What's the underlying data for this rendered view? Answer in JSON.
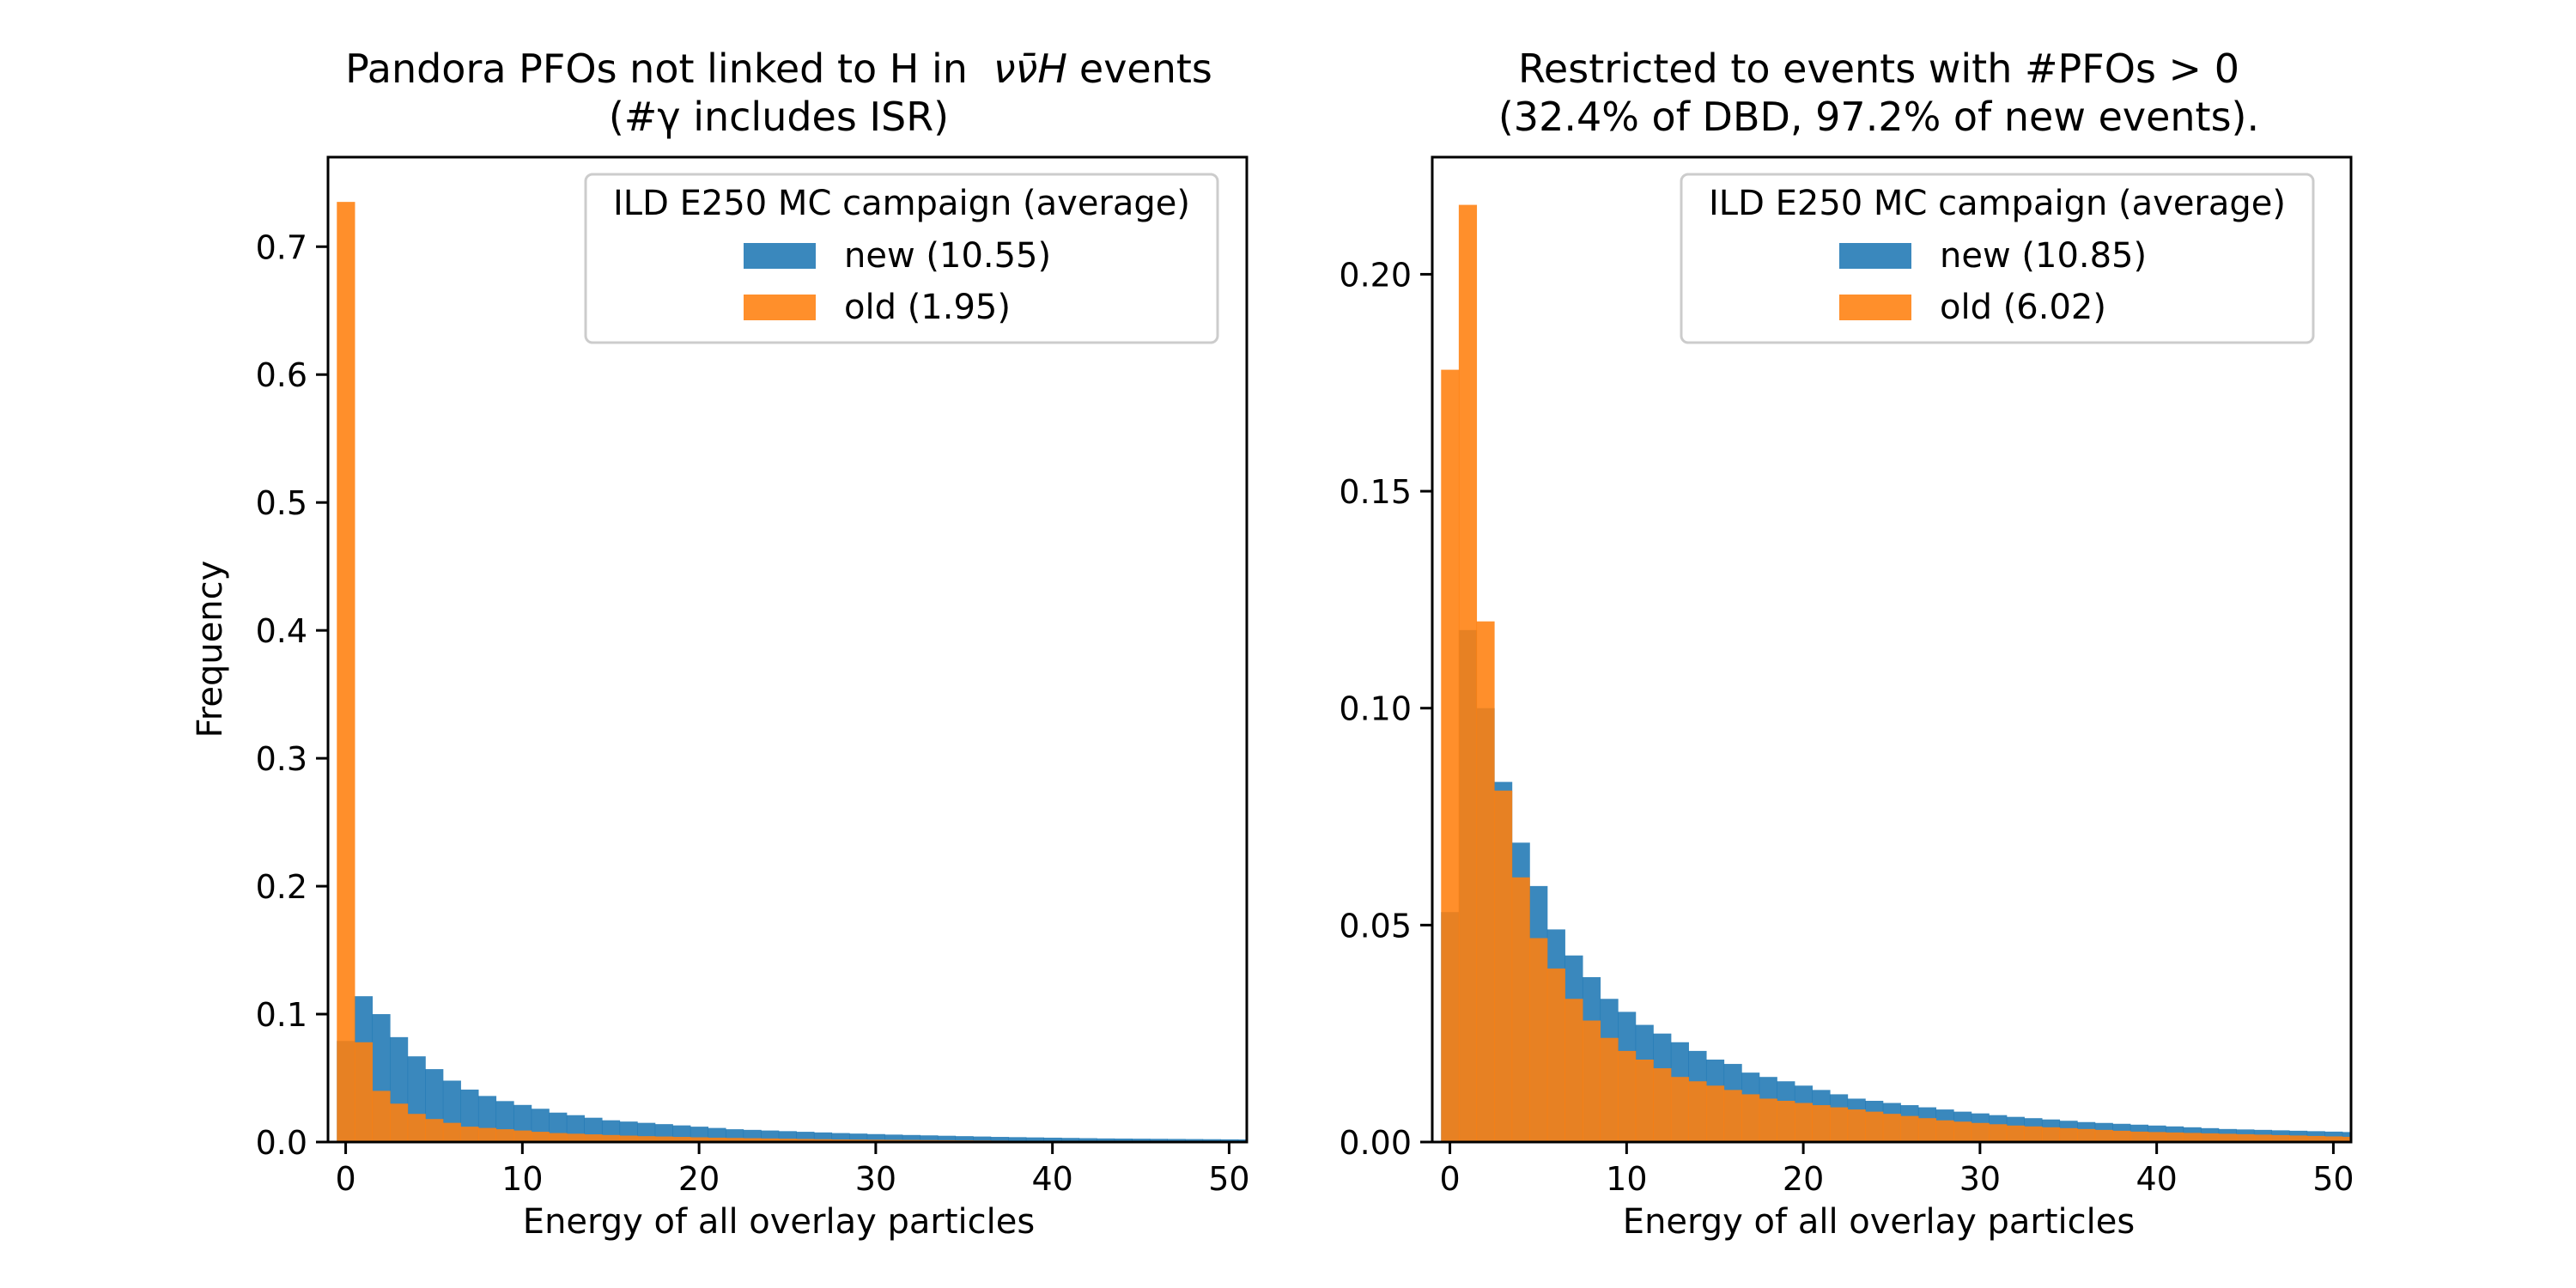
{
  "chart_data": [
    {
      "type": "bar",
      "title_line1": "Pandora PFOs not linked to H in",
      "title_math": "νν̄H",
      "title_line1_end": "events",
      "title_line2": "(#γ includes ISR)",
      "xlabel": "Energy of all overlay particles",
      "ylabel": "Frequency",
      "xlim": [
        -1,
        51
      ],
      "ylim": [
        0,
        0.77
      ],
      "xticks": [
        "0",
        "10",
        "20",
        "30",
        "40",
        "50"
      ],
      "xtick_values": [
        0,
        10,
        20,
        30,
        40,
        50
      ],
      "yticks": [
        "0.0",
        "0.1",
        "0.2",
        "0.3",
        "0.4",
        "0.5",
        "0.6",
        "0.7"
      ],
      "ytick_values": [
        0,
        0.1,
        0.2,
        0.3,
        0.4,
        0.5,
        0.6,
        0.7
      ],
      "bin_edges_start": -0.5,
      "bin_width": 1,
      "legend": {
        "title": "ILD E250 MC campaign (average)",
        "placement": "top-right",
        "entries": [
          "new (10.55)",
          "old (1.95)"
        ]
      },
      "series": [
        {
          "name": "new (10.55)",
          "color": "#1f77b4",
          "values": [
            0.079,
            0.114,
            0.1,
            0.082,
            0.067,
            0.057,
            0.048,
            0.041,
            0.036,
            0.032,
            0.029,
            0.026,
            0.023,
            0.021,
            0.019,
            0.017,
            0.016,
            0.015,
            0.014,
            0.013,
            0.012,
            0.011,
            0.01,
            0.0095,
            0.009,
            0.0085,
            0.008,
            0.0075,
            0.007,
            0.0066,
            0.0062,
            0.0058,
            0.0055,
            0.0052,
            0.0049,
            0.0046,
            0.0043,
            0.004,
            0.0038,
            0.0036,
            0.0034,
            0.0032,
            0.003,
            0.0028,
            0.0027,
            0.0026,
            0.0025,
            0.0024,
            0.0023,
            0.0022,
            0.0021,
            0.002
          ]
        },
        {
          "name": "old (1.95)",
          "color": "#ff7f0e",
          "values": [
            0.735,
            0.078,
            0.04,
            0.03,
            0.022,
            0.018,
            0.015,
            0.012,
            0.011,
            0.01,
            0.009,
            0.008,
            0.007,
            0.0065,
            0.006,
            0.0055,
            0.005,
            0.0046,
            0.0043,
            0.004,
            0.0037,
            0.0034,
            0.0032,
            0.003,
            0.0028,
            0.0026,
            0.0024,
            0.0022,
            0.002,
            0.0019,
            0.0018,
            0.0017,
            0.0016,
            0.0015,
            0.0014,
            0.0013,
            0.0012,
            0.0011,
            0.001,
            0.001,
            0.0009,
            0.0009,
            0.0008,
            0.0008,
            0.0007,
            0.0007,
            0.0006,
            0.0006,
            0.0006,
            0.0005,
            0.0005,
            0.0005
          ]
        }
      ]
    },
    {
      "type": "bar",
      "title_line1": "Restricted to events with #PFOs > 0",
      "title_line2": "(32.4% of DBD, 97.2% of new events).",
      "xlabel": "Energy of all overlay particles",
      "ylabel": "",
      "xlim": [
        -1,
        51
      ],
      "ylim": [
        0,
        0.227
      ],
      "xticks": [
        "0",
        "10",
        "20",
        "30",
        "40",
        "50"
      ],
      "xtick_values": [
        0,
        10,
        20,
        30,
        40,
        50
      ],
      "yticks": [
        "0.00",
        "0.05",
        "0.10",
        "0.15",
        "0.20"
      ],
      "ytick_values": [
        0,
        0.05,
        0.1,
        0.15,
        0.2
      ],
      "bin_edges_start": -0.5,
      "bin_width": 1,
      "legend": {
        "title": "ILD E250 MC campaign (average)",
        "placement": "top-right",
        "entries": [
          "new (10.85)",
          "old (6.02)"
        ]
      },
      "series": [
        {
          "name": "new (10.85)",
          "color": "#1f77b4",
          "values": [
            0.053,
            0.118,
            0.1,
            0.083,
            0.069,
            0.059,
            0.049,
            0.043,
            0.038,
            0.033,
            0.03,
            0.027,
            0.025,
            0.023,
            0.021,
            0.019,
            0.018,
            0.016,
            0.015,
            0.014,
            0.013,
            0.012,
            0.011,
            0.01,
            0.0095,
            0.009,
            0.0085,
            0.008,
            0.0075,
            0.007,
            0.0066,
            0.0062,
            0.0058,
            0.0055,
            0.0052,
            0.0049,
            0.0046,
            0.0044,
            0.0042,
            0.004,
            0.0038,
            0.0036,
            0.0034,
            0.0032,
            0.003,
            0.0029,
            0.0028,
            0.0027,
            0.0026,
            0.0025,
            0.0024,
            0.0023
          ]
        },
        {
          "name": "old (6.02)",
          "color": "#ff7f0e",
          "values": [
            0.178,
            0.216,
            0.12,
            0.081,
            0.061,
            0.047,
            0.04,
            0.033,
            0.028,
            0.024,
            0.021,
            0.019,
            0.017,
            0.015,
            0.014,
            0.013,
            0.012,
            0.011,
            0.01,
            0.0095,
            0.009,
            0.0085,
            0.008,
            0.0075,
            0.007,
            0.0065,
            0.006,
            0.0055,
            0.005,
            0.0047,
            0.0044,
            0.0041,
            0.0038,
            0.0036,
            0.0034,
            0.0032,
            0.003,
            0.0028,
            0.0026,
            0.0024,
            0.0023,
            0.0022,
            0.0021,
            0.002,
            0.0019,
            0.0018,
            0.0017,
            0.0016,
            0.0015,
            0.0014,
            0.0013,
            0.0012
          ]
        }
      ]
    }
  ]
}
